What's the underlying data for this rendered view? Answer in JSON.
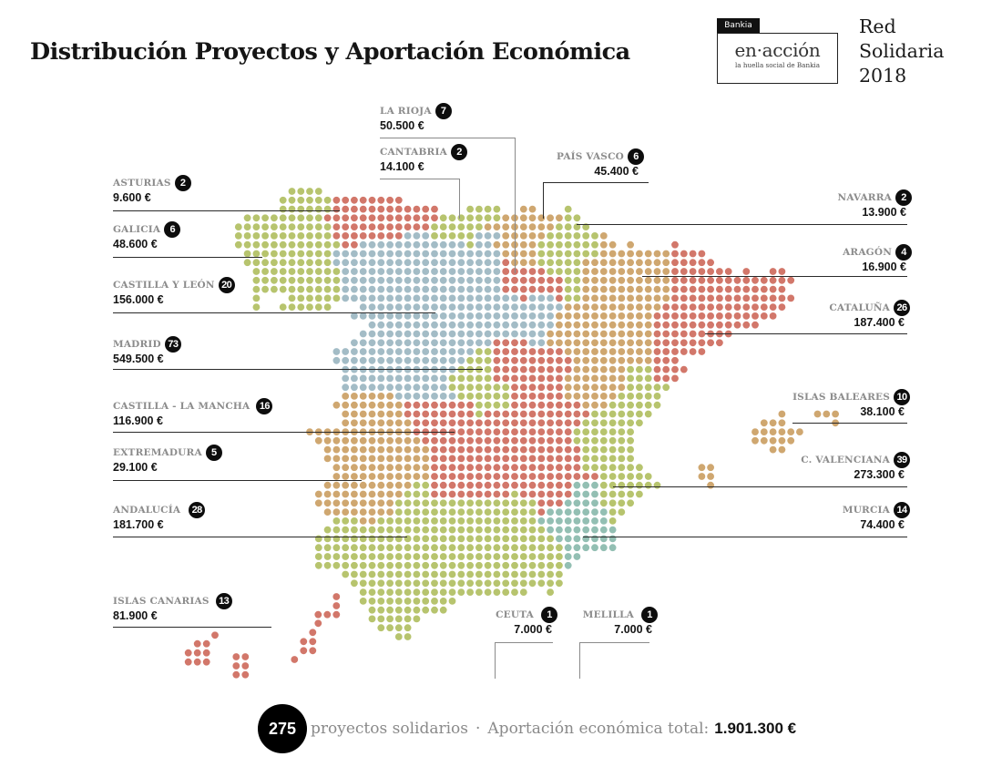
{
  "header": {
    "title": "Distribución Proyectos y Aportación Económica",
    "logo": {
      "tab": "Bankia",
      "name": "en·acción",
      "tagline": "la huella social de Bankia"
    },
    "side_title": [
      "Red",
      "Solidaria",
      "2018"
    ]
  },
  "map_colors": {
    "green": "#b7c46e",
    "red": "#d2776a",
    "tan": "#cfa770",
    "slate": "#a3bcc6",
    "teal": "#93bfb3",
    "leader_dark": "#2a2a2a",
    "leader_light": "#8a8a8a"
  },
  "regions": {
    "asturias": {
      "name": "ASTURIAS",
      "projects": "2",
      "amount": "9.600 €"
    },
    "galicia": {
      "name": "GALICIA",
      "projects": "6",
      "amount": "48.600 €"
    },
    "castilla_leon": {
      "name": "CASTILLA Y LEÓN",
      "projects": "20",
      "amount": "156.000 €"
    },
    "madrid": {
      "name": "MADRID",
      "projects": "73",
      "amount": "549.500 €"
    },
    "castilla_la_mancha": {
      "name": "CASTILLA - LA MANCHA",
      "projects": "16",
      "amount": "116.900 €"
    },
    "extremadura": {
      "name": "EXTREMADURA",
      "projects": "5",
      "amount": "29.100 €"
    },
    "andalucia": {
      "name": "ANDALUCÍA",
      "projects": "28",
      "amount": "181.700 €"
    },
    "canarias": {
      "name": "ISLAS CANARIAS",
      "projects": "13",
      "amount": "81.900 €"
    },
    "la_rioja": {
      "name": "LA RIOJA",
      "projects": "7",
      "amount": "50.500 €"
    },
    "cantabria": {
      "name": "CANTABRIA",
      "projects": "2",
      "amount": "14.100 €"
    },
    "pais_vasco": {
      "name": "PAÍS VASCO",
      "projects": "6",
      "amount": "45.400 €"
    },
    "navarra": {
      "name": "NAVARRA",
      "projects": "2",
      "amount": "13.900 €"
    },
    "aragon": {
      "name": "ARAGÓN",
      "projects": "4",
      "amount": "16.900 €"
    },
    "cataluna": {
      "name": "CATALUÑA",
      "projects": "26",
      "amount": "187.400 €"
    },
    "baleares": {
      "name": "ISLAS BALEARES",
      "projects": "10",
      "amount": "38.100 €"
    },
    "valencia": {
      "name": "C. VALENCIANA",
      "projects": "39",
      "amount": "273.300 €"
    },
    "murcia": {
      "name": "MURCIA",
      "projects": "14",
      "amount": "74.400 €"
    },
    "ceuta": {
      "name": "CEUTA",
      "projects": "1",
      "amount": "7.000 €"
    },
    "melilla": {
      "name": "MELILLA",
      "projects": "1",
      "amount": "7.000 €"
    }
  },
  "footer": {
    "total_projects": "275",
    "projects_label": "proyectos solidarios",
    "separator": "·",
    "total_label": "Aportación económica total:",
    "total_amount": "1.901.300 €"
  }
}
